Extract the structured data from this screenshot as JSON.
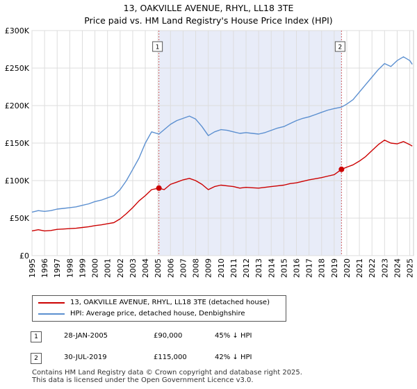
{
  "chart_data": {
    "type": "line",
    "title": "13, OAKVILLE AVENUE, RHYL, LL18 3TE",
    "subtitle": "Price paid vs. HM Land Registry's House Price Index (HPI)",
    "xlim": [
      1995,
      2025.3
    ],
    "ylim": [
      0,
      300000
    ],
    "y_ticks": [
      {
        "value": 0,
        "label": "£0"
      },
      {
        "value": 50000,
        "label": "£50K"
      },
      {
        "value": 100000,
        "label": "£100K"
      },
      {
        "value": 150000,
        "label": "£150K"
      },
      {
        "value": 200000,
        "label": "£200K"
      },
      {
        "value": 250000,
        "label": "£250K"
      },
      {
        "value": 300000,
        "label": "£300K"
      }
    ],
    "x_ticks": [
      "1995",
      "1996",
      "1997",
      "1998",
      "1999",
      "2000",
      "2001",
      "2002",
      "2003",
      "2004",
      "2005",
      "2006",
      "2007",
      "2008",
      "2009",
      "2010",
      "2011",
      "2012",
      "2013",
      "2014",
      "2015",
      "2016",
      "2017",
      "2018",
      "2019",
      "2020",
      "2021",
      "2022",
      "2023",
      "2024",
      "2025"
    ],
    "shaded_region": [
      2005.08,
      2019.58
    ],
    "series": [
      {
        "name": "13, OAKVILLE AVENUE, RHYL, LL18 3TE (detached house)",
        "color": "#cc0000",
        "points": [
          [
            1995.0,
            33000
          ],
          [
            1995.5,
            34500
          ],
          [
            1996.0,
            33000
          ],
          [
            1996.5,
            33500
          ],
          [
            1997.0,
            35000
          ],
          [
            1997.5,
            35500
          ],
          [
            1998.0,
            36000
          ],
          [
            1998.5,
            36500
          ],
          [
            1999.0,
            37500
          ],
          [
            1999.5,
            38500
          ],
          [
            2000.0,
            40000
          ],
          [
            2000.5,
            41000
          ],
          [
            2001.0,
            42500
          ],
          [
            2001.5,
            44000
          ],
          [
            2002.0,
            49000
          ],
          [
            2002.5,
            56000
          ],
          [
            2003.0,
            64000
          ],
          [
            2003.5,
            73000
          ],
          [
            2004.0,
            80000
          ],
          [
            2004.5,
            88000
          ],
          [
            2005.08,
            90000
          ],
          [
            2005.5,
            88000
          ],
          [
            2006.0,
            95000
          ],
          [
            2006.5,
            98000
          ],
          [
            2007.0,
            101000
          ],
          [
            2007.5,
            103000
          ],
          [
            2008.0,
            100000
          ],
          [
            2008.5,
            95000
          ],
          [
            2009.0,
            88000
          ],
          [
            2009.5,
            92000
          ],
          [
            2010.0,
            94000
          ],
          [
            2010.5,
            93000
          ],
          [
            2011.0,
            92000
          ],
          [
            2011.5,
            90000
          ],
          [
            2012.0,
            91000
          ],
          [
            2012.5,
            90500
          ],
          [
            2013.0,
            90000
          ],
          [
            2013.5,
            91000
          ],
          [
            2014.0,
            92000
          ],
          [
            2014.5,
            93000
          ],
          [
            2015.0,
            94000
          ],
          [
            2015.5,
            96000
          ],
          [
            2016.0,
            97000
          ],
          [
            2016.5,
            99000
          ],
          [
            2017.0,
            101000
          ],
          [
            2017.5,
            102500
          ],
          [
            2018.0,
            104000
          ],
          [
            2018.5,
            106000
          ],
          [
            2019.0,
            108000
          ],
          [
            2019.58,
            115000
          ],
          [
            2020.0,
            118000
          ],
          [
            2020.5,
            121000
          ],
          [
            2021.0,
            126000
          ],
          [
            2021.5,
            132000
          ],
          [
            2022.0,
            140000
          ],
          [
            2022.5,
            148000
          ],
          [
            2023.0,
            154000
          ],
          [
            2023.5,
            150000
          ],
          [
            2024.0,
            149000
          ],
          [
            2024.5,
            152000
          ],
          [
            2025.0,
            148000
          ],
          [
            2025.2,
            146000
          ]
        ]
      },
      {
        "name": "HPI: Average price, detached house, Denbighshire",
        "color": "#5b8fd0",
        "points": [
          [
            1995.0,
            58000
          ],
          [
            1995.5,
            60000
          ],
          [
            1996.0,
            59000
          ],
          [
            1996.5,
            60000
          ],
          [
            1997.0,
            62000
          ],
          [
            1997.5,
            63000
          ],
          [
            1998.0,
            64000
          ],
          [
            1998.5,
            65000
          ],
          [
            1999.0,
            67000
          ],
          [
            1999.5,
            69000
          ],
          [
            2000.0,
            72000
          ],
          [
            2000.5,
            74000
          ],
          [
            2001.0,
            77000
          ],
          [
            2001.5,
            80000
          ],
          [
            2002.0,
            88000
          ],
          [
            2002.5,
            100000
          ],
          [
            2003.0,
            115000
          ],
          [
            2003.5,
            130000
          ],
          [
            2004.0,
            150000
          ],
          [
            2004.5,
            165000
          ],
          [
            2005.08,
            162000
          ],
          [
            2005.5,
            168000
          ],
          [
            2006.0,
            175000
          ],
          [
            2006.5,
            180000
          ],
          [
            2007.0,
            183000
          ],
          [
            2007.5,
            186000
          ],
          [
            2008.0,
            182000
          ],
          [
            2008.5,
            172000
          ],
          [
            2009.0,
            160000
          ],
          [
            2009.5,
            165000
          ],
          [
            2010.0,
            168000
          ],
          [
            2010.5,
            167000
          ],
          [
            2011.0,
            165000
          ],
          [
            2011.5,
            163000
          ],
          [
            2012.0,
            164000
          ],
          [
            2012.5,
            163000
          ],
          [
            2013.0,
            162000
          ],
          [
            2013.5,
            164000
          ],
          [
            2014.0,
            167000
          ],
          [
            2014.5,
            170000
          ],
          [
            2015.0,
            172000
          ],
          [
            2015.5,
            176000
          ],
          [
            2016.0,
            180000
          ],
          [
            2016.5,
            183000
          ],
          [
            2017.0,
            185000
          ],
          [
            2017.5,
            188000
          ],
          [
            2018.0,
            191000
          ],
          [
            2018.5,
            194000
          ],
          [
            2019.0,
            196000
          ],
          [
            2019.58,
            198000
          ],
          [
            2020.0,
            202000
          ],
          [
            2020.5,
            208000
          ],
          [
            2021.0,
            218000
          ],
          [
            2021.5,
            228000
          ],
          [
            2022.0,
            238000
          ],
          [
            2022.5,
            248000
          ],
          [
            2023.0,
            256000
          ],
          [
            2023.5,
            252000
          ],
          [
            2024.0,
            260000
          ],
          [
            2024.5,
            265000
          ],
          [
            2025.0,
            260000
          ],
          [
            2025.2,
            255000
          ]
        ]
      }
    ],
    "annotations": [
      {
        "label": "1",
        "x": 2005.08,
        "y": 90000
      },
      {
        "label": "2",
        "x": 2019.58,
        "y": 115000
      }
    ]
  },
  "sales": [
    {
      "num": "1",
      "date": "28-JAN-2005",
      "price": "£90,000",
      "hpi": "45% ↓ HPI"
    },
    {
      "num": "2",
      "date": "30-JUL-2019",
      "price": "£115,000",
      "hpi": "42% ↓ HPI"
    }
  ],
  "footer": {
    "line1": "Contains HM Land Registry data © Crown copyright and database right 2025.",
    "line2": "This data is licensed under the Open Government Licence v3.0."
  }
}
